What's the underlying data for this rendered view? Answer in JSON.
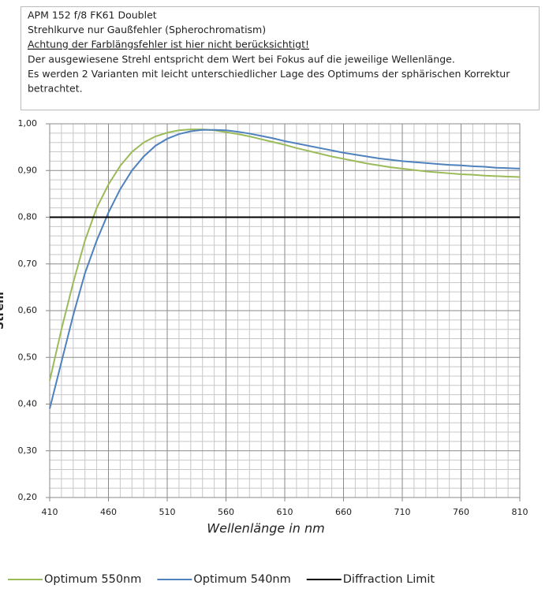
{
  "chart_data": {
    "type": "line",
    "annotation_lines": [
      "APM 152 f/8 FK61 Doublet",
      "Strehlkurve nur Gaußfehler (Spherochromatism)",
      "Achtung der Farblängsfehler ist hier nicht berücksichtigt!",
      "Der ausgewiesene Strehl entspricht dem Wert bei Fokus auf die jeweilige Wellenlänge.",
      "Es werden 2 Varianten mit  leicht unterschiedlicher Lage des Optimums der sphärischen Korrektur",
      "betrachtet."
    ],
    "xlabel": "Wellenlänge in nm",
    "ylabel": "Strehl",
    "x": [
      410,
      420,
      430,
      440,
      450,
      460,
      470,
      480,
      490,
      500,
      510,
      520,
      530,
      540,
      550,
      560,
      570,
      580,
      590,
      600,
      610,
      620,
      630,
      640,
      650,
      660,
      670,
      680,
      690,
      700,
      710,
      720,
      730,
      740,
      750,
      760,
      770,
      780,
      790,
      800,
      810
    ],
    "series": [
      {
        "name": "Optimum 550nm",
        "color": "#9bbb59",
        "values": [
          0.45,
          0.56,
          0.66,
          0.75,
          0.82,
          0.87,
          0.91,
          0.94,
          0.96,
          0.973,
          0.981,
          0.986,
          0.988,
          0.988,
          0.986,
          0.982,
          0.978,
          0.973,
          0.967,
          0.961,
          0.955,
          0.948,
          0.942,
          0.936,
          0.93,
          0.925,
          0.92,
          0.915,
          0.911,
          0.907,
          0.904,
          0.901,
          0.898,
          0.896,
          0.894,
          0.892,
          0.891,
          0.889,
          0.888,
          0.887,
          0.886
        ]
      },
      {
        "name": "Optimum 540nm",
        "color": "#4f81bd",
        "values": [
          0.39,
          0.49,
          0.59,
          0.68,
          0.75,
          0.81,
          0.86,
          0.9,
          0.93,
          0.953,
          0.968,
          0.978,
          0.984,
          0.987,
          0.987,
          0.986,
          0.983,
          0.979,
          0.974,
          0.969,
          0.963,
          0.958,
          0.953,
          0.948,
          0.943,
          0.938,
          0.934,
          0.93,
          0.926,
          0.923,
          0.92,
          0.918,
          0.916,
          0.914,
          0.912,
          0.911,
          0.909,
          0.908,
          0.906,
          0.905,
          0.904
        ]
      },
      {
        "name": "Diffraction Limit",
        "color": "#000000",
        "values": [
          0.8,
          0.8,
          0.8,
          0.8,
          0.8,
          0.8,
          0.8,
          0.8,
          0.8,
          0.8,
          0.8,
          0.8,
          0.8,
          0.8,
          0.8,
          0.8,
          0.8,
          0.8,
          0.8,
          0.8,
          0.8,
          0.8,
          0.8,
          0.8,
          0.8,
          0.8,
          0.8,
          0.8,
          0.8,
          0.8,
          0.8,
          0.8,
          0.8,
          0.8,
          0.8,
          0.8,
          0.8,
          0.8,
          0.8,
          0.8,
          0.8
        ]
      }
    ],
    "xlim": [
      410,
      810
    ],
    "xticks": [
      410,
      460,
      510,
      560,
      610,
      660,
      710,
      760,
      810
    ],
    "ylim": [
      0.2,
      1.0
    ],
    "yticks": [
      {
        "value": 0.2,
        "label": "0,20"
      },
      {
        "value": 0.3,
        "label": "0,30"
      },
      {
        "value": 0.4,
        "label": "0,40"
      },
      {
        "value": 0.5,
        "label": "0,50"
      },
      {
        "value": 0.6,
        "label": "0,60"
      },
      {
        "value": 0.7,
        "label": "0,70"
      },
      {
        "value": 0.8,
        "label": "0,80"
      },
      {
        "value": 0.9,
        "label": "0,90"
      },
      {
        "value": 1.0,
        "label": "1,00"
      }
    ],
    "grid": true,
    "minor_grid": true,
    "legend": "bottom"
  }
}
